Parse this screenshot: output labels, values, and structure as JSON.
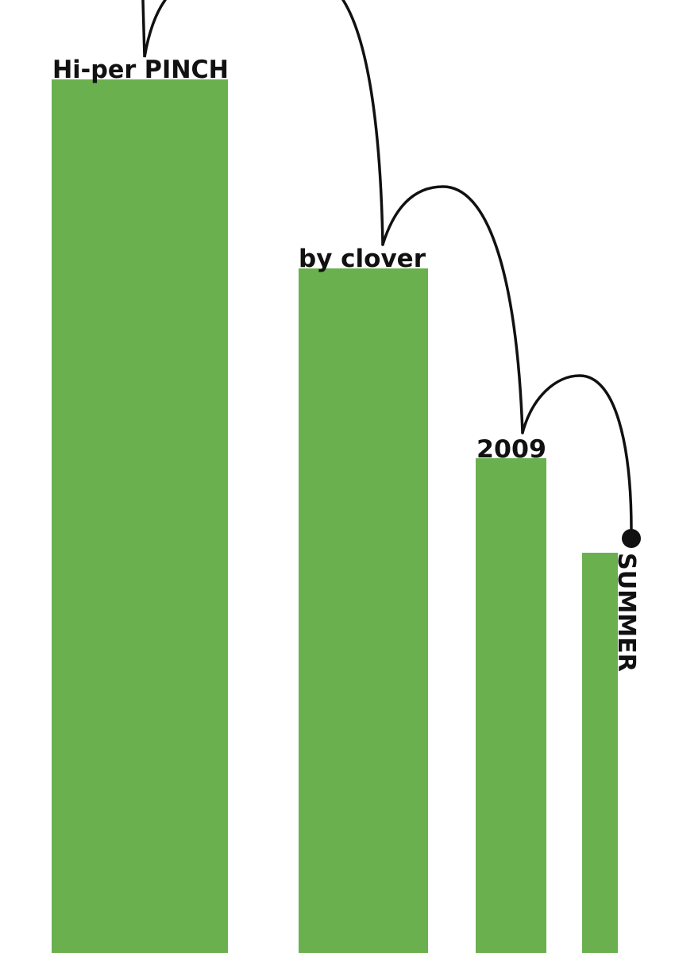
{
  "cover": {
    "title": "Hi-per PINCH",
    "author": "by clover",
    "year": "2009",
    "season": "SUMMER"
  },
  "colors": {
    "bar_green": "#6ab04f",
    "line_black": "#111111",
    "background": "#ffffff"
  }
}
